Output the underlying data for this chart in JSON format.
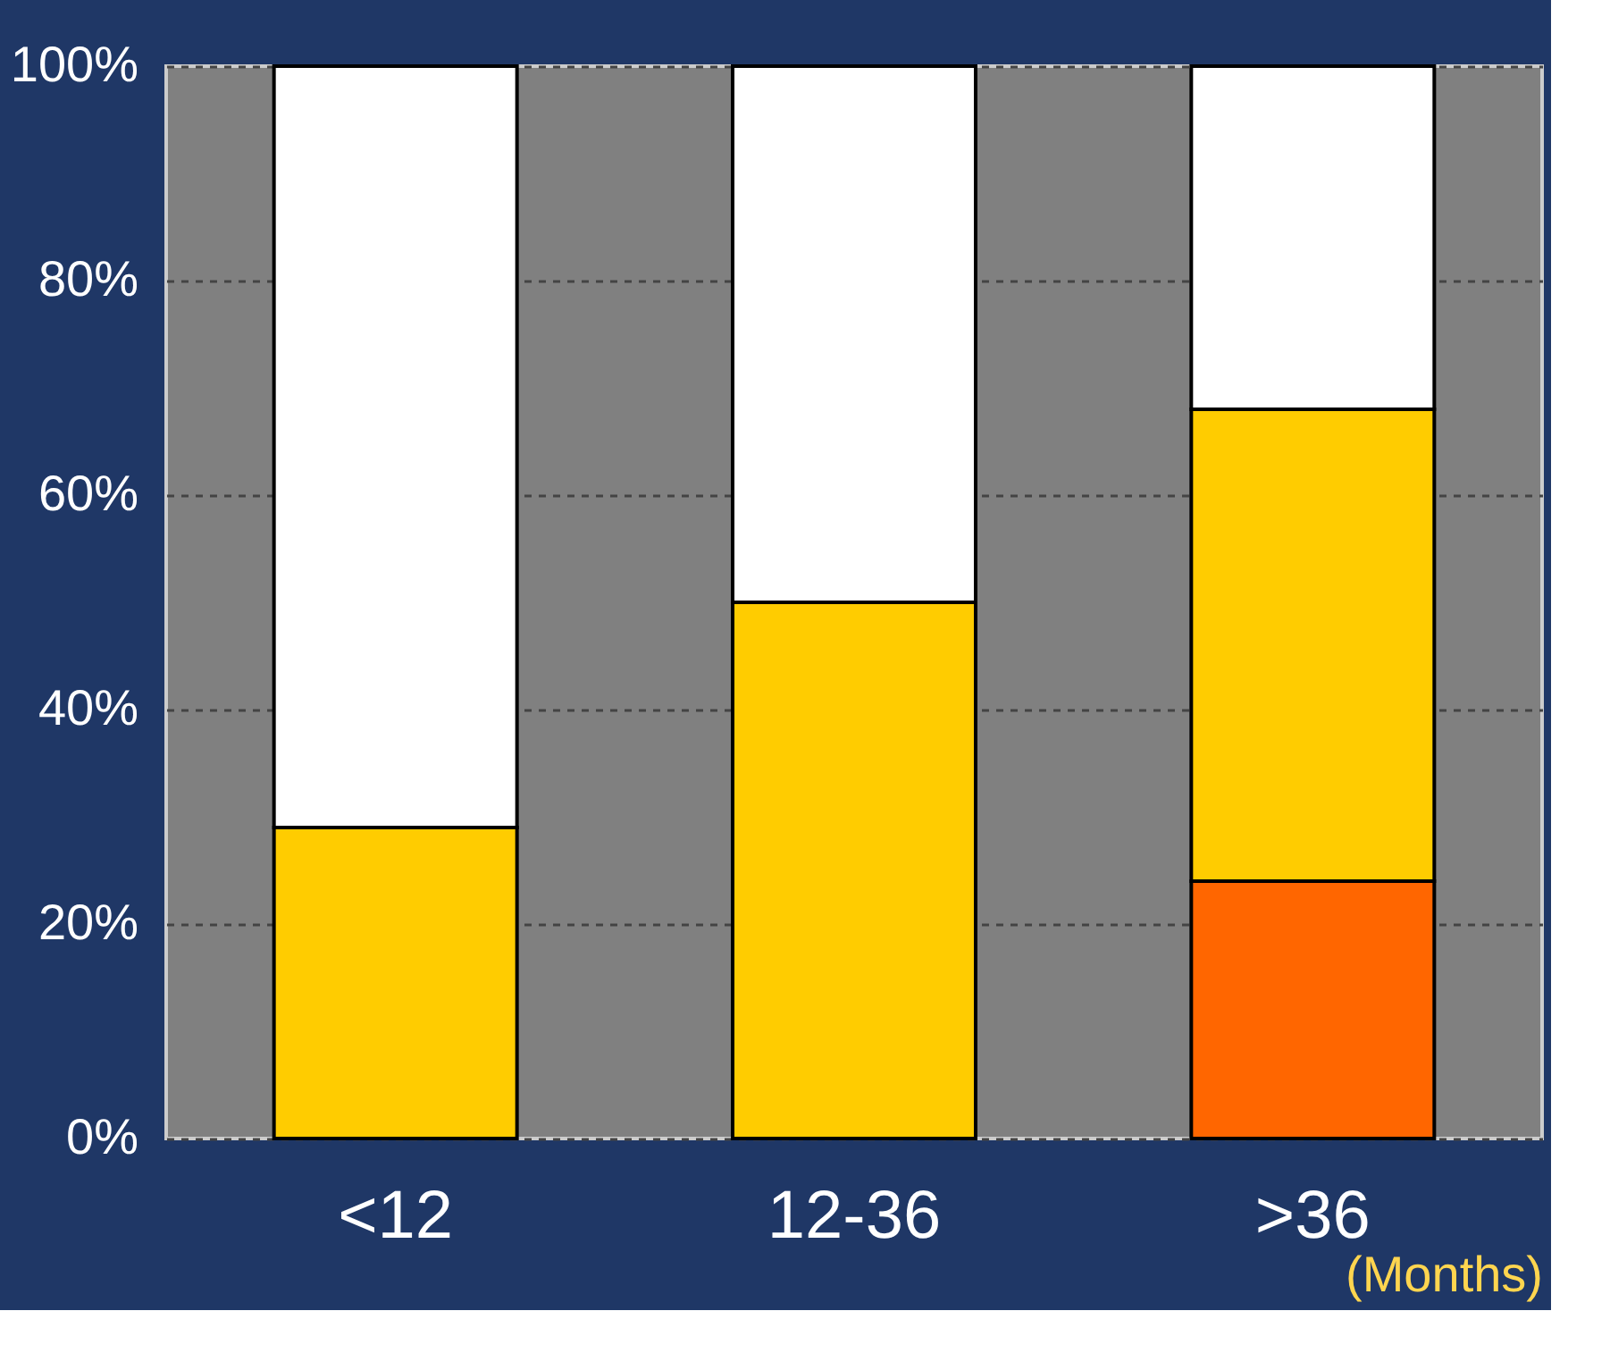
{
  "chart_data": {
    "type": "bar",
    "stacked": true,
    "xlabel": "(Months)",
    "categories": [
      "<12",
      "12-36",
      ">36"
    ],
    "series": [
      {
        "color": "#ff6600",
        "values": [
          0,
          0,
          24
        ]
      },
      {
        "color": "#ffcc00",
        "values": [
          29,
          50,
          44
        ]
      },
      {
        "color": "#ffffff",
        "values": [
          71,
          50,
          32
        ]
      }
    ],
    "ylim": [
      0,
      100
    ],
    "yticks": [
      {
        "value": 0,
        "label": "0%"
      },
      {
        "value": 20,
        "label": "20%"
      },
      {
        "value": 40,
        "label": "40%"
      },
      {
        "value": 60,
        "label": "60%"
      },
      {
        "value": 80,
        "label": "80%"
      },
      {
        "value": 100,
        "label": "100%"
      }
    ],
    "grid": "y",
    "legend": false
  }
}
